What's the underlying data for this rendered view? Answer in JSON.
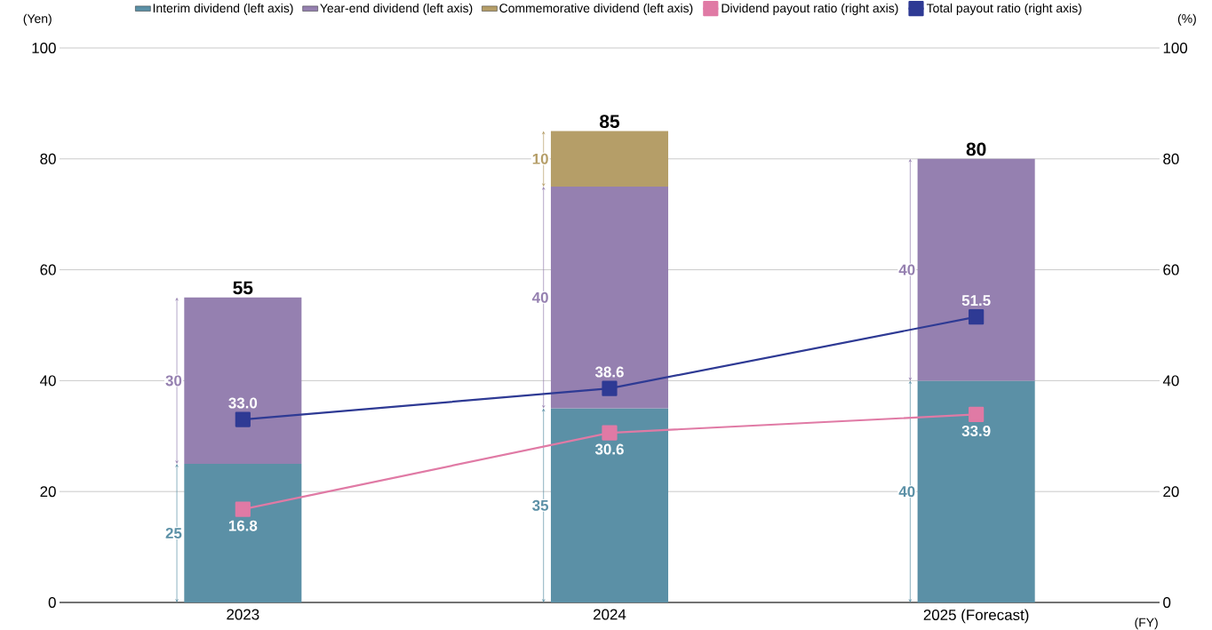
{
  "chart_data": {
    "type": "bar",
    "stacked": true,
    "categories": [
      "2023",
      "2024",
      "2025 (Forecast)"
    ],
    "xlabel": "(FY)",
    "ylabel": "(Yen)",
    "y2label": "(%)",
    "ylim": [
      0,
      100
    ],
    "yticks": [
      0,
      20,
      40,
      60,
      80,
      100
    ],
    "y2lim": [
      0,
      100
    ],
    "y2ticks": [
      0,
      20,
      40,
      60,
      80,
      100
    ],
    "grid": "y",
    "legend": "top",
    "marker": "square",
    "series": [
      {
        "name": "Interim dividend (left axis)",
        "color": "#5b90a6",
        "values": [
          25,
          35,
          40
        ],
        "value_labels": [
          "25",
          "35",
          "40"
        ]
      },
      {
        "name": "Year-end dividend (left axis)",
        "color": "#9580b0",
        "values": [
          30,
          40,
          40
        ],
        "value_labels": [
          "30",
          "40",
          "40"
        ]
      },
      {
        "name": "Commemorative dividend (left axis)",
        "color": "#b59e68",
        "values": [
          null,
          10,
          null
        ],
        "value_labels": [
          null,
          "10",
          null
        ]
      },
      {
        "name": "Dividend payout ratio (right axis)",
        "type": "line",
        "axis": "y2",
        "color": "#e07aa5",
        "values": [
          16.8,
          30.6,
          33.9
        ],
        "value_labels": [
          "16.8",
          "30.6",
          "33.9"
        ]
      },
      {
        "name": "Total payout ratio (right axis)",
        "type": "line",
        "axis": "y2",
        "color": "#2e3a94",
        "values": [
          33.0,
          38.6,
          51.5
        ],
        "value_labels": [
          "33.0",
          "38.6",
          "51.5"
        ]
      }
    ],
    "totals": [
      "55",
      "85",
      "80"
    ]
  }
}
